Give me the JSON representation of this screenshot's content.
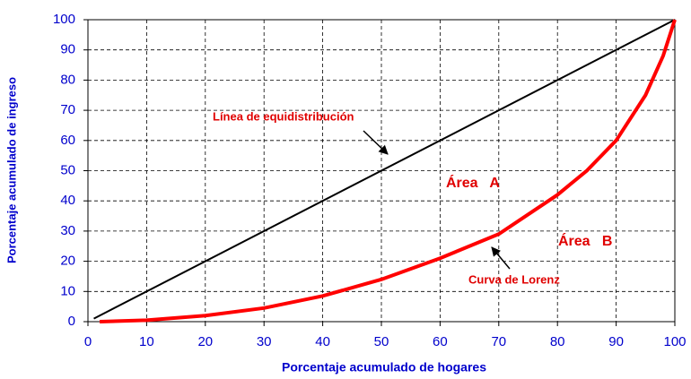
{
  "chart_data": {
    "type": "line",
    "x_label": "Porcentaje acumulado de hogares",
    "y_label": "Porcentaje acumulado de ingreso",
    "xlim": [
      0,
      100
    ],
    "ylim": [
      0,
      100
    ],
    "xticks": [
      0,
      10,
      20,
      30,
      40,
      50,
      60,
      70,
      80,
      90,
      100
    ],
    "yticks": [
      0,
      10,
      20,
      30,
      40,
      50,
      60,
      70,
      80,
      90,
      100
    ],
    "grid": true,
    "series": [
      {
        "name": "Línea de equidistribución",
        "color": "#000000",
        "x": [
          1,
          100
        ],
        "values": [
          1,
          100
        ]
      },
      {
        "name": "Curva de Lorenz",
        "color": "#ff0000",
        "x": [
          2,
          10,
          20,
          30,
          40,
          50,
          60,
          70,
          80,
          85,
          90,
          95,
          98,
          100
        ],
        "values": [
          0,
          0.5,
          2,
          4.5,
          8.5,
          14,
          21,
          29,
          42,
          50,
          60,
          75,
          88,
          100
        ]
      }
    ],
    "annotations": [
      {
        "text": "Línea de equidistribución"
      },
      {
        "text": "Área   A"
      },
      {
        "text": "Área   B"
      },
      {
        "text": "Curva de Lorenz"
      }
    ]
  }
}
